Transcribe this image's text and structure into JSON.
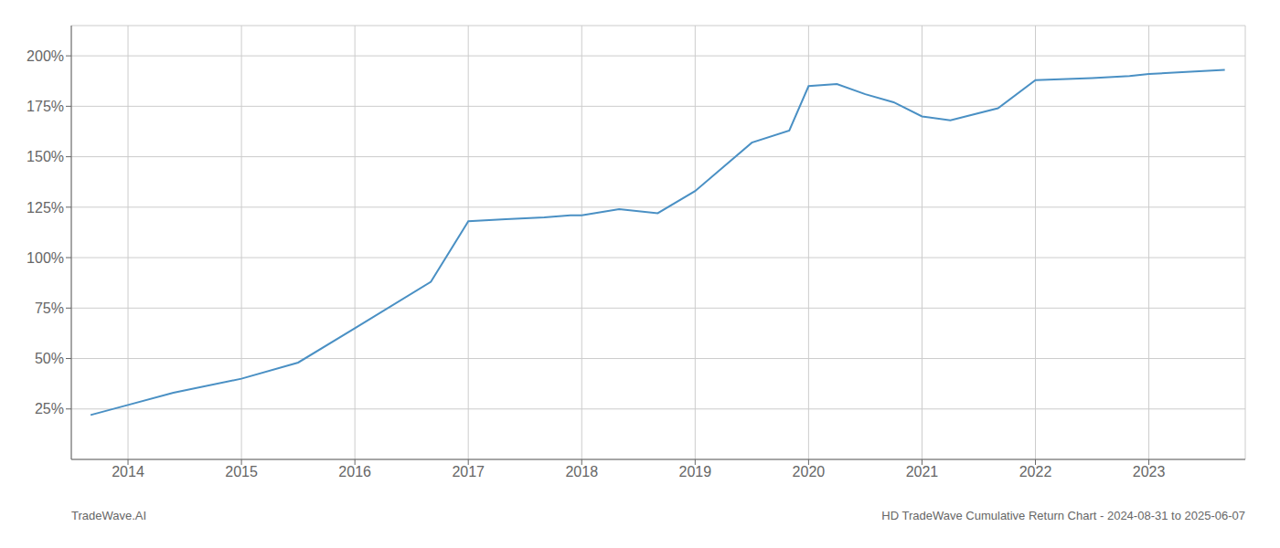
{
  "chart_data": {
    "type": "line",
    "x": [
      2013.67,
      2014.0,
      2014.4,
      2015.0,
      2015.5,
      2016.0,
      2016.67,
      2017.0,
      2017.33,
      2017.67,
      2017.9,
      2018.0,
      2018.33,
      2018.67,
      2019.0,
      2019.5,
      2019.83,
      2020.0,
      2020.25,
      2020.5,
      2020.75,
      2021.0,
      2021.25,
      2021.67,
      2022.0,
      2022.5,
      2022.83,
      2023.0,
      2023.33,
      2023.67
    ],
    "values": [
      22,
      27,
      33,
      40,
      48,
      65,
      88,
      118,
      119,
      120,
      121,
      121,
      124,
      122,
      133,
      157,
      163,
      185,
      186,
      181,
      177,
      170,
      168,
      174,
      188,
      189,
      190,
      191,
      192,
      193
    ],
    "color": "#4a90c4",
    "xlim": [
      2013.5,
      2023.85
    ],
    "xticks": [
      2014,
      2015,
      2016,
      2017,
      2018,
      2019,
      2020,
      2021,
      2022,
      2023
    ],
    "ylim": [
      0,
      215
    ],
    "yticks": [
      {
        "value": 25,
        "label": "25%"
      },
      {
        "value": 50,
        "label": "50%"
      },
      {
        "value": 75,
        "label": "75%"
      },
      {
        "value": 100,
        "label": "100%"
      },
      {
        "value": 125,
        "label": "125%"
      },
      {
        "value": 150,
        "label": "150%"
      },
      {
        "value": 175,
        "label": "175%"
      },
      {
        "value": 200,
        "label": "200%"
      }
    ],
    "grid": true,
    "annotations": [
      "TradeWave.AI",
      "HD TradeWave Cumulative Return Chart - 2024-08-31 to 2025-06-07"
    ]
  }
}
